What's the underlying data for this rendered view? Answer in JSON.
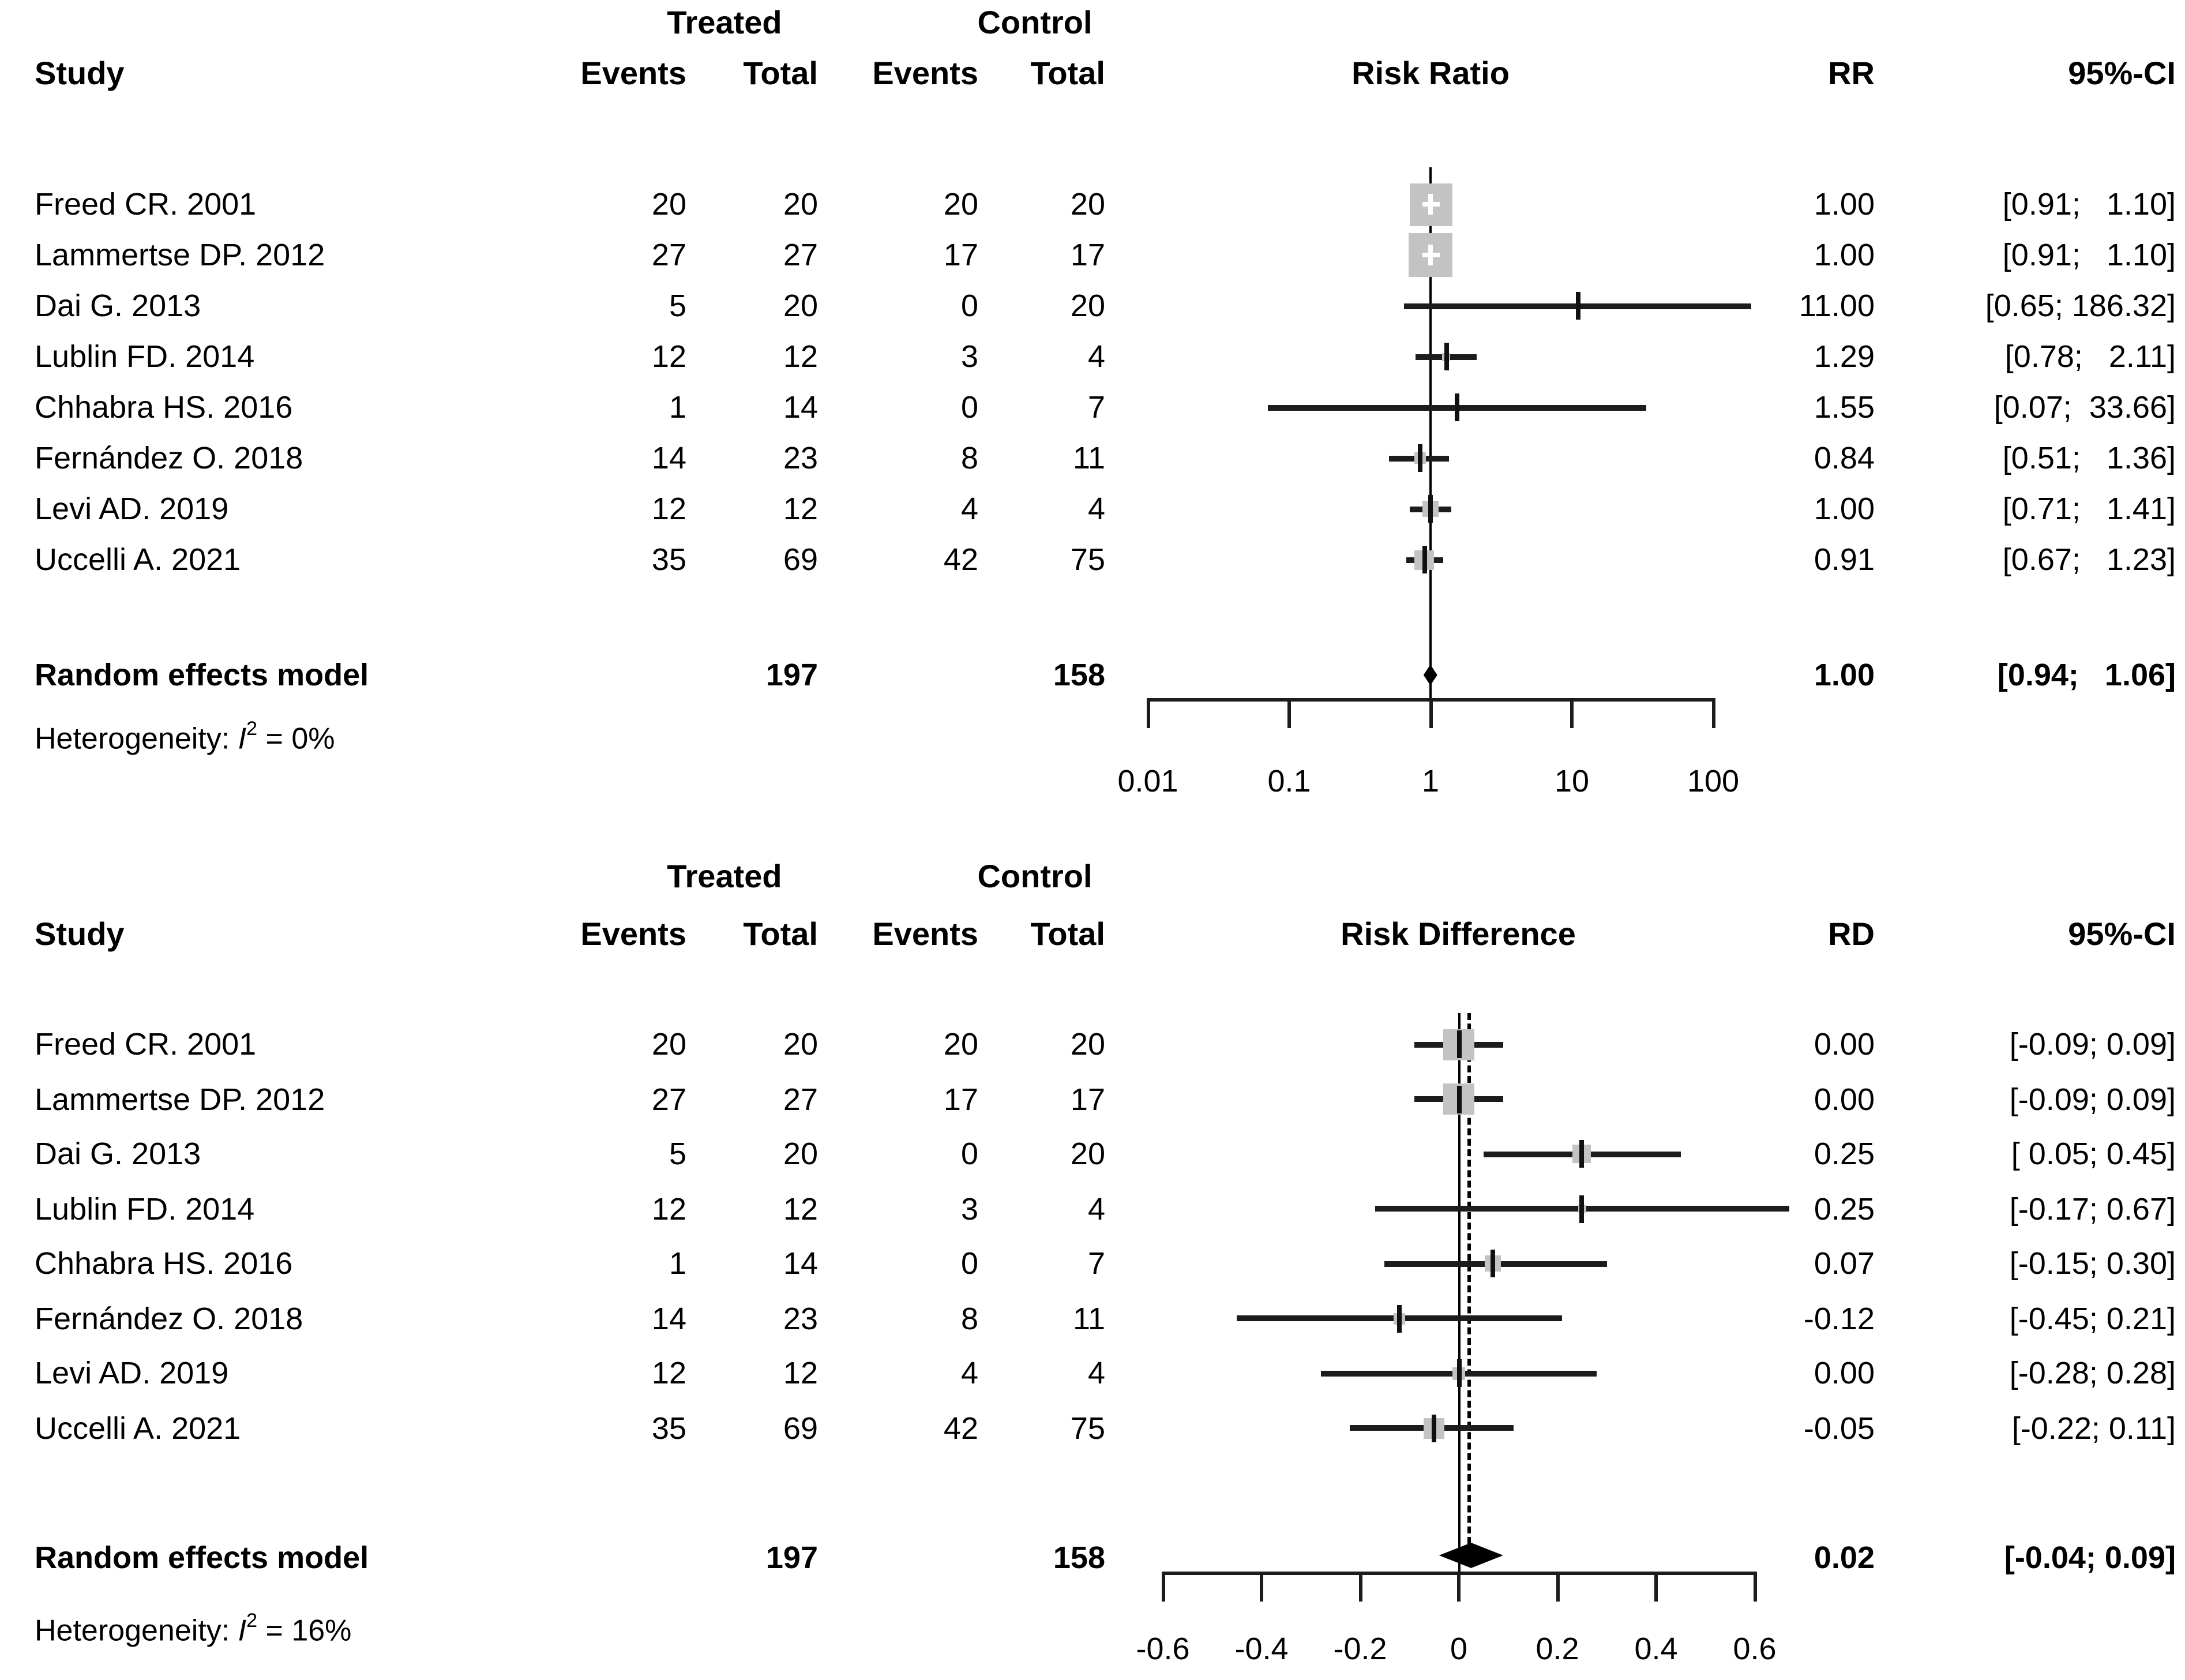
{
  "figure": {
    "description": "Forest plots of meta-analysis: Risk Ratio (top) and Risk Difference (bottom)",
    "colors": {
      "square": "#c3c3c3",
      "line": "#1c1c1c",
      "diamond": "#000000",
      "text": "#000000",
      "background": "#ffffff"
    }
  },
  "chart_data": [
    {
      "type": "forest",
      "title": "Risk Ratio",
      "scale": "log",
      "xlim": [
        0.01,
        100
      ],
      "group_headers": {
        "treated": "Treated",
        "control": "Control"
      },
      "col_headers": {
        "study": "Study",
        "events1": "Events",
        "total1": "Total",
        "events2": "Events",
        "total2": "Total",
        "plot": "Risk Ratio",
        "effect": "RR",
        "ci": "95%-CI"
      },
      "axis_ticks": [
        {
          "v": 0.01,
          "label": "0.01"
        },
        {
          "v": 0.1,
          "label": "0.1"
        },
        {
          "v": 1,
          "label": "1"
        },
        {
          "v": 10,
          "label": "10"
        },
        {
          "v": 100,
          "label": "100"
        }
      ],
      "ref_line": 1,
      "rows": [
        {
          "study": "Freed CR. 2001",
          "e1": "20",
          "t1": "20",
          "e2": "20",
          "t2": "20",
          "est": 1.0,
          "lo": 0.91,
          "hi": 1.1,
          "est_label": "1.00",
          "ci_label": "[0.91;   1.10]",
          "sq": 37,
          "plus": true
        },
        {
          "study": "Lammertse DP. 2012",
          "e1": "27",
          "t1": "27",
          "e2": "17",
          "t2": "17",
          "est": 1.0,
          "lo": 0.91,
          "hi": 1.1,
          "est_label": "1.00",
          "ci_label": "[0.91;   1.10]",
          "sq": 38,
          "plus": true
        },
        {
          "study": "Dai G. 2013",
          "e1": "5",
          "t1": "20",
          "e2": "0",
          "t2": "20",
          "est": 11.0,
          "lo": 0.65,
          "hi": 186.32,
          "est_label": "11.00",
          "ci_label": "[0.65; 186.32]",
          "sq": 0
        },
        {
          "study": "Lublin FD. 2014",
          "e1": "12",
          "t1": "12",
          "e2": "3",
          "t2": "4",
          "est": 1.29,
          "lo": 0.78,
          "hi": 2.11,
          "est_label": "1.29",
          "ci_label": "[0.78;   2.11]",
          "sq": 7
        },
        {
          "study": "Chhabra HS. 2016",
          "e1": "1",
          "t1": "14",
          "e2": "0",
          "t2": "7",
          "est": 1.55,
          "lo": 0.07,
          "hi": 33.66,
          "est_label": "1.55",
          "ci_label": "[0.07;  33.66]",
          "sq": 0
        },
        {
          "study": "Fernández O. 2018",
          "e1": "14",
          "t1": "23",
          "e2": "8",
          "t2": "11",
          "est": 0.84,
          "lo": 0.51,
          "hi": 1.36,
          "est_label": "0.84",
          "ci_label": "[0.51;   1.36]",
          "sq": 10
        },
        {
          "study": "Levi AD. 2019",
          "e1": "12",
          "t1": "12",
          "e2": "4",
          "t2": "4",
          "est": 1.0,
          "lo": 0.71,
          "hi": 1.41,
          "est_label": "1.00",
          "ci_label": "[0.71;   1.41]",
          "sq": 14
        },
        {
          "study": "Uccelli A. 2021",
          "e1": "35",
          "t1": "69",
          "e2": "42",
          "t2": "75",
          "est": 0.91,
          "lo": 0.67,
          "hi": 1.23,
          "est_label": "0.91",
          "ci_label": "[0.67;   1.23]",
          "sq": 17
        }
      ],
      "summary": {
        "label": "Random effects model",
        "t1": "197",
        "t2": "158",
        "est": 1.0,
        "lo": 0.94,
        "hi": 1.06,
        "est_label": "1.00",
        "ci_label": "[0.94;   1.06]"
      },
      "heterogeneity": {
        "prefix": "Heterogeneity: ",
        "stat": "I",
        "sup": "2",
        "rest": " = 0%"
      }
    },
    {
      "type": "forest",
      "title": "Risk Difference",
      "scale": "linear",
      "xlim": [
        -0.6,
        0.6
      ],
      "group_headers": {
        "treated": "Treated",
        "control": "Control"
      },
      "col_headers": {
        "study": "Study",
        "events1": "Events",
        "total1": "Total",
        "events2": "Events",
        "total2": "Total",
        "plot": "Risk Difference",
        "effect": "RD",
        "ci": "95%-CI"
      },
      "axis_ticks": [
        {
          "v": -0.6,
          "label": "-0.6"
        },
        {
          "v": -0.4,
          "label": "-0.4"
        },
        {
          "v": -0.2,
          "label": "-0.2"
        },
        {
          "v": 0,
          "label": "0"
        },
        {
          "v": 0.2,
          "label": "0.2"
        },
        {
          "v": 0.4,
          "label": "0.4"
        },
        {
          "v": 0.6,
          "label": "0.6"
        }
      ],
      "ref_line": 0,
      "pooled_dashed_line": 0.02,
      "rows": [
        {
          "study": "Freed CR. 2001",
          "e1": "20",
          "t1": "20",
          "e2": "20",
          "t2": "20",
          "est": 0.0,
          "lo": -0.09,
          "hi": 0.09,
          "est_label": "0.00",
          "ci_label": "[-0.09; 0.09]",
          "sq": 27
        },
        {
          "study": "Lammertse DP. 2012",
          "e1": "27",
          "t1": "27",
          "e2": "17",
          "t2": "17",
          "est": 0.0,
          "lo": -0.09,
          "hi": 0.09,
          "est_label": "0.00",
          "ci_label": "[-0.09; 0.09]",
          "sq": 27
        },
        {
          "study": "Dai G. 2013",
          "e1": "5",
          "t1": "20",
          "e2": "0",
          "t2": "20",
          "est": 0.25,
          "lo": 0.05,
          "hi": 0.45,
          "est_label": "0.25",
          "ci_label": "[ 0.05; 0.45]",
          "sq": 16
        },
        {
          "study": "Lublin FD. 2014",
          "e1": "12",
          "t1": "12",
          "e2": "3",
          "t2": "4",
          "est": 0.25,
          "lo": -0.17,
          "hi": 0.67,
          "est_label": "0.25",
          "ci_label": "[-0.17; 0.67]",
          "sq": 7
        },
        {
          "study": "Chhabra HS. 2016",
          "e1": "1",
          "t1": "14",
          "e2": "0",
          "t2": "7",
          "est": 0.07,
          "lo": -0.15,
          "hi": 0.3,
          "est_label": "0.07",
          "ci_label": "[-0.15; 0.30]",
          "sq": 14
        },
        {
          "study": "Fernández O. 2018",
          "e1": "14",
          "t1": "23",
          "e2": "8",
          "t2": "11",
          "est": -0.12,
          "lo": -0.45,
          "hi": 0.21,
          "est_label": "-0.12",
          "ci_label": "[-0.45; 0.21]",
          "sq": 10
        },
        {
          "study": "Levi AD. 2019",
          "e1": "12",
          "t1": "12",
          "e2": "4",
          "t2": "4",
          "est": 0.0,
          "lo": -0.28,
          "hi": 0.28,
          "est_label": "0.00",
          "ci_label": "[-0.28; 0.28]",
          "sq": 11
        },
        {
          "study": "Uccelli A. 2021",
          "e1": "35",
          "t1": "69",
          "e2": "42",
          "t2": "75",
          "est": -0.05,
          "lo": -0.22,
          "hi": 0.11,
          "est_label": "-0.05",
          "ci_label": "[-0.22; 0.11]",
          "sq": 18
        }
      ],
      "summary": {
        "label": "Random effects model",
        "t1": "197",
        "t2": "158",
        "est": 0.02,
        "lo": -0.04,
        "hi": 0.09,
        "est_label": "0.02",
        "ci_label": "[-0.04; 0.09]"
      },
      "heterogeneity": {
        "prefix": "Heterogeneity: ",
        "stat": "I",
        "sup": "2",
        "rest": " = 16%"
      }
    }
  ]
}
